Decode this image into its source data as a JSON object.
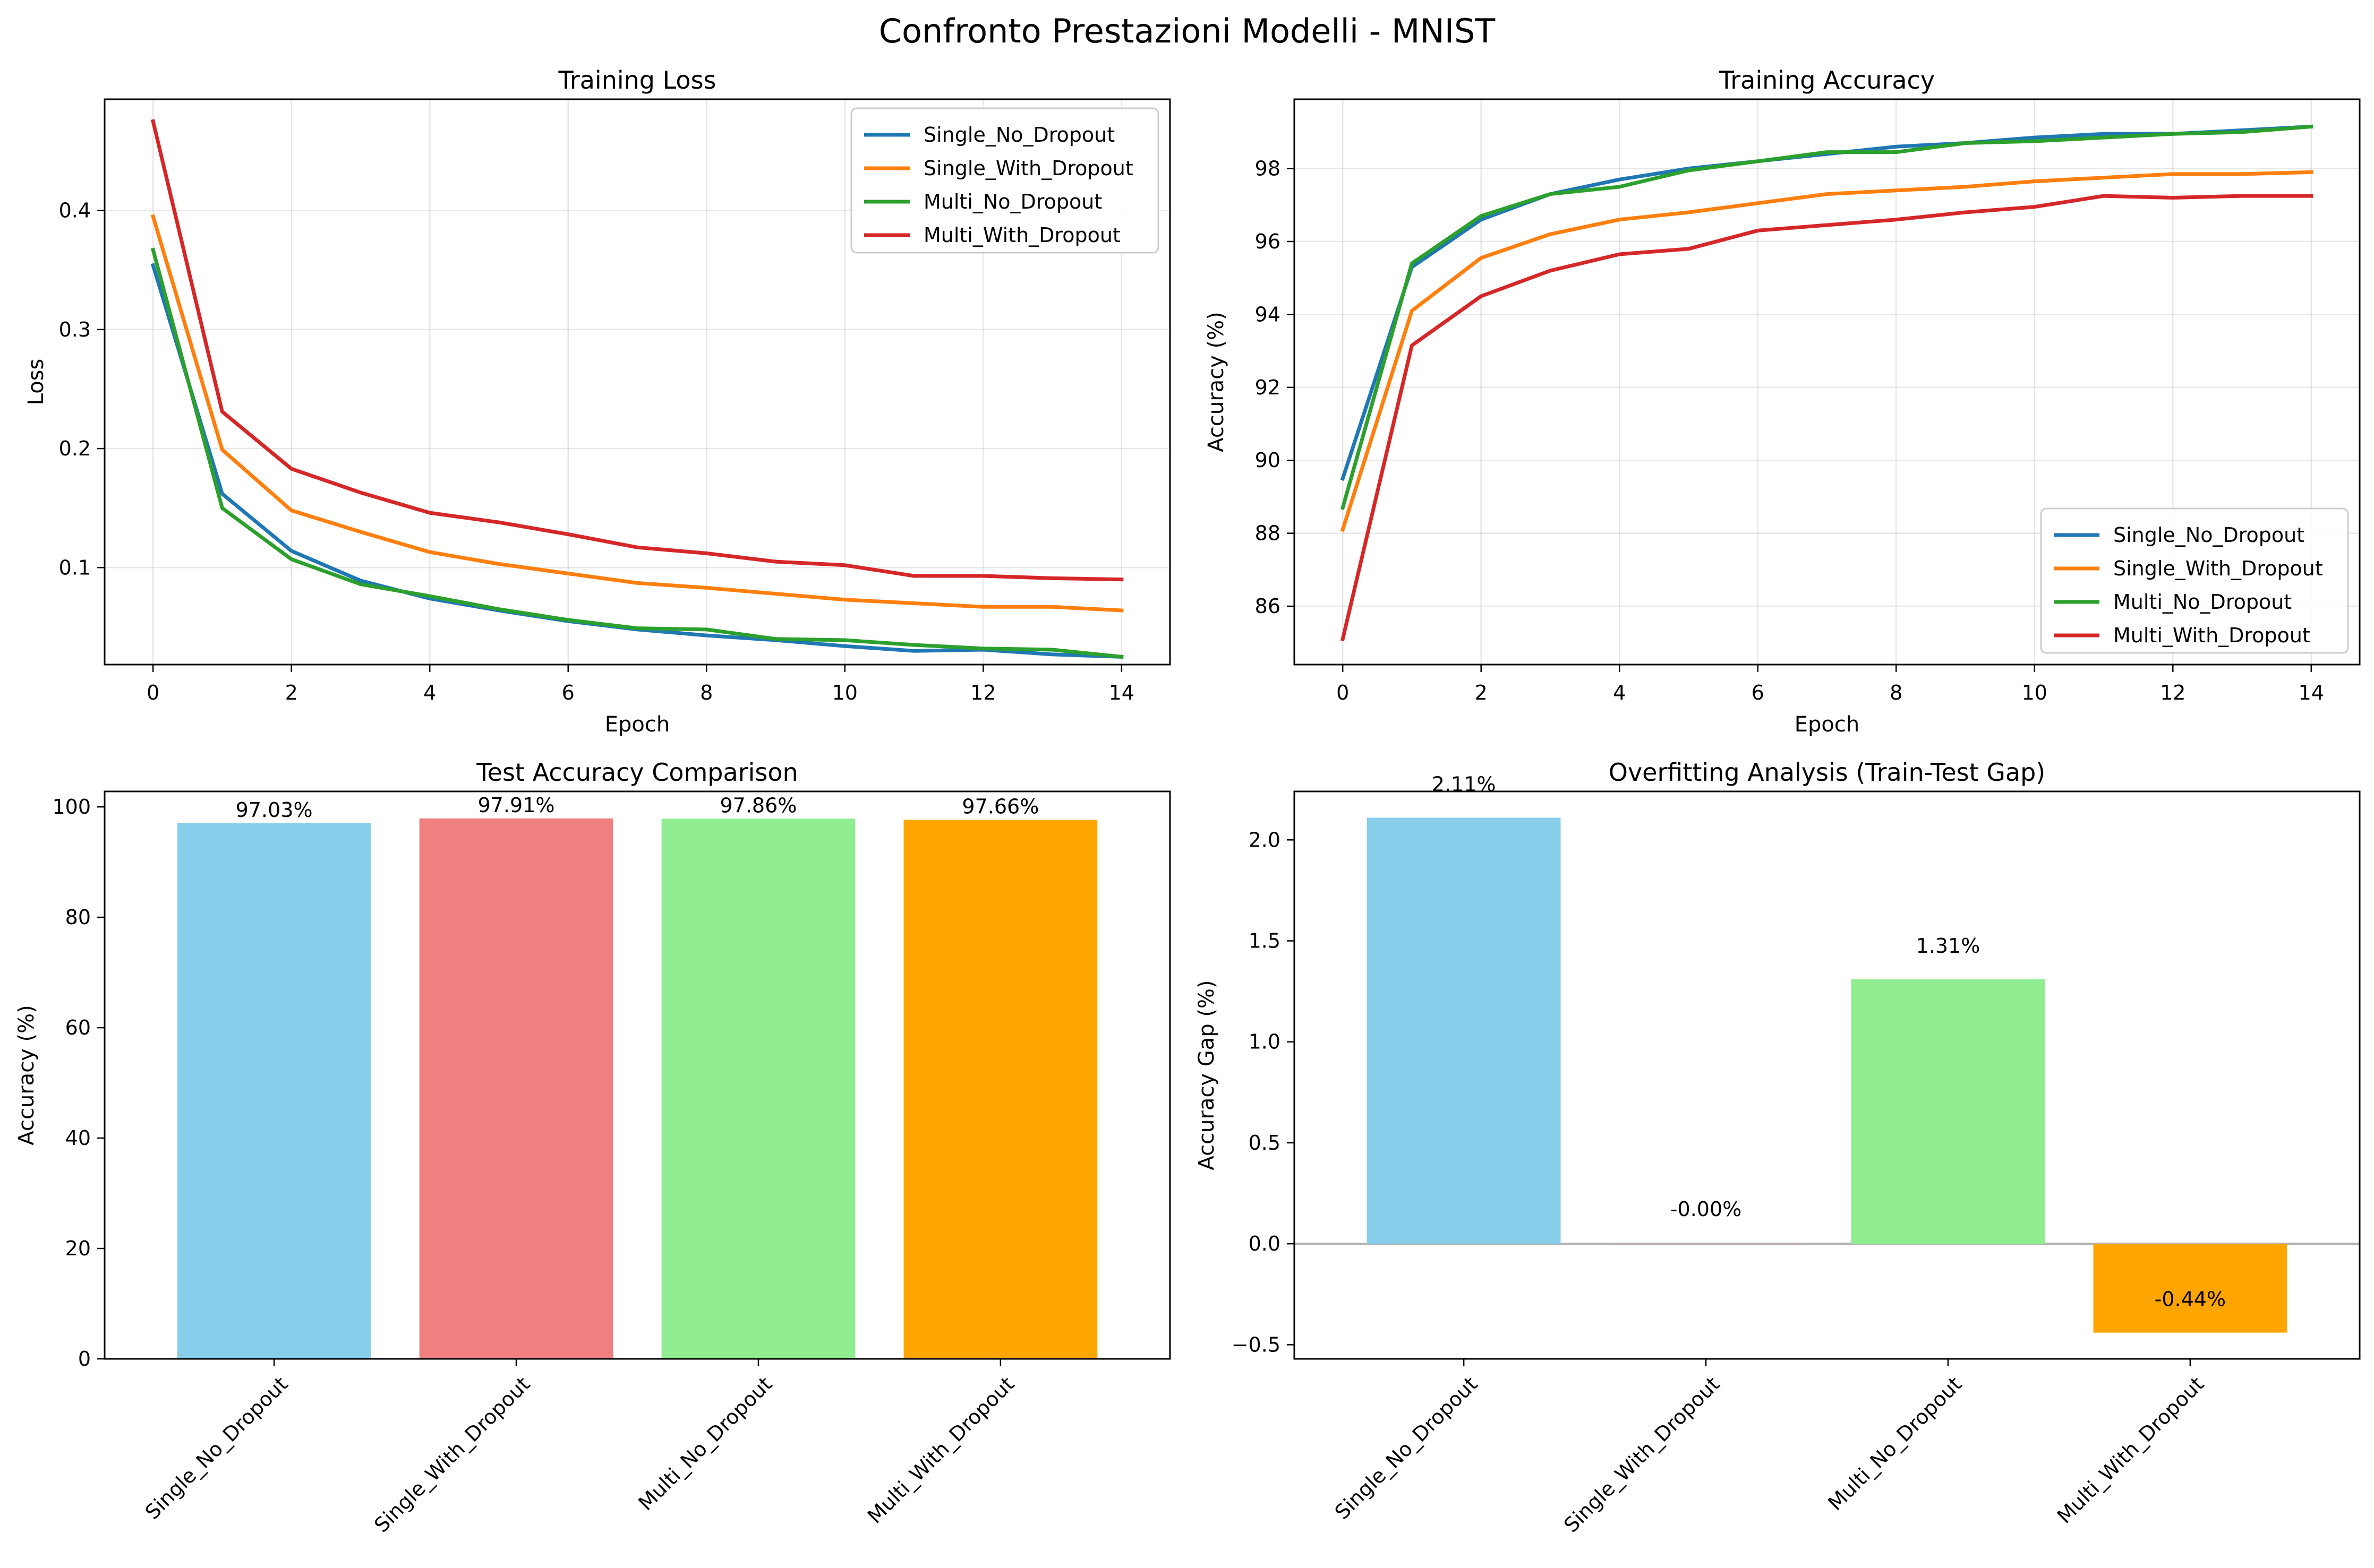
{
  "figure": {
    "suptitle": "Confronto Prestazioni Modelli - MNIST"
  },
  "colors": {
    "Single_No_Dropout": "#1f77b4",
    "Single_With_Dropout": "#ff7f0e",
    "Multi_No_Dropout": "#2ca02c",
    "Multi_With_Dropout": "#d62728",
    "bar_1": "#87ceeb",
    "bar_2": "#f08080",
    "bar_3": "#90ee90",
    "bar_4": "#ffa500"
  },
  "chart_data": [
    {
      "type": "line",
      "title": "Training Loss",
      "xlabel": "Epoch",
      "ylabel": "Loss",
      "xlim": [
        -0.7,
        14.7
      ],
      "ylim": [
        0.0185,
        0.4935
      ],
      "xticks": [
        0,
        2,
        4,
        6,
        8,
        10,
        12,
        14
      ],
      "yticks": [
        0.1,
        0.2,
        0.3,
        0.4
      ],
      "yticklabels": [
        "0.1",
        "0.2",
        "0.3",
        "0.4"
      ],
      "grid": true,
      "legend": "upper right",
      "x": [
        0,
        1,
        2,
        3,
        4,
        5,
        6,
        7,
        8,
        9,
        10,
        11,
        12,
        13,
        14
      ],
      "series": [
        {
          "name": "Single_No_Dropout",
          "values": [
            0.354,
            0.162,
            0.114,
            0.089,
            0.074,
            0.064,
            0.055,
            0.048,
            0.043,
            0.039,
            0.034,
            0.03,
            0.031,
            0.027,
            0.025
          ]
        },
        {
          "name": "Single_With_Dropout",
          "values": [
            0.395,
            0.199,
            0.148,
            0.13,
            0.113,
            0.103,
            0.095,
            0.087,
            0.083,
            0.078,
            0.073,
            0.07,
            0.067,
            0.067,
            0.064
          ]
        },
        {
          "name": "Multi_No_Dropout",
          "values": [
            0.367,
            0.15,
            0.107,
            0.086,
            0.076,
            0.065,
            0.056,
            0.049,
            0.048,
            0.04,
            0.039,
            0.035,
            0.032,
            0.031,
            0.025
          ]
        },
        {
          "name": "Multi_With_Dropout",
          "values": [
            0.475,
            0.231,
            0.183,
            0.163,
            0.146,
            0.138,
            0.128,
            0.117,
            0.112,
            0.105,
            0.102,
            0.093,
            0.093,
            0.091,
            0.09
          ]
        }
      ]
    },
    {
      "type": "line",
      "title": "Training Accuracy",
      "xlabel": "Epoch",
      "ylabel": "Accuracy (%)",
      "xlim": [
        -0.7,
        14.7
      ],
      "ylim": [
        84.4,
        99.9
      ],
      "xticks": [
        0,
        2,
        4,
        6,
        8,
        10,
        12,
        14
      ],
      "yticks": [
        86,
        88,
        90,
        92,
        94,
        96,
        98
      ],
      "yticklabels": [
        "86",
        "88",
        "90",
        "92",
        "94",
        "96",
        "98"
      ],
      "grid": true,
      "legend": "lower right",
      "x": [
        0,
        1,
        2,
        3,
        4,
        5,
        6,
        7,
        8,
        9,
        10,
        11,
        12,
        13,
        14
      ],
      "series": [
        {
          "name": "Single_No_Dropout",
          "values": [
            89.5,
            95.3,
            96.6,
            97.3,
            97.7,
            98.0,
            98.2,
            98.4,
            98.6,
            98.7,
            98.85,
            98.95,
            98.95,
            99.05,
            99.15
          ]
        },
        {
          "name": "Single_With_Dropout",
          "values": [
            88.1,
            94.1,
            95.55,
            96.2,
            96.6,
            96.8,
            97.05,
            97.3,
            97.4,
            97.5,
            97.65,
            97.75,
            97.85,
            97.85,
            97.9
          ]
        },
        {
          "name": "Multi_No_Dropout",
          "values": [
            88.7,
            95.4,
            96.7,
            97.3,
            97.5,
            97.95,
            98.2,
            98.45,
            98.45,
            98.7,
            98.75,
            98.85,
            98.95,
            99.0,
            99.15
          ]
        },
        {
          "name": "Multi_With_Dropout",
          "values": [
            85.1,
            93.15,
            94.5,
            95.2,
            95.65,
            95.8,
            96.3,
            96.45,
            96.6,
            96.8,
            96.95,
            97.25,
            97.2,
            97.25,
            97.25
          ]
        }
      ]
    },
    {
      "type": "bar",
      "title": "Test Accuracy Comparison",
      "xlabel": "",
      "ylabel": "Accuracy (%)",
      "ylim": [
        0,
        102.8
      ],
      "yticks": [
        0,
        20,
        40,
        60,
        80,
        100
      ],
      "yticklabels": [
        "0",
        "20",
        "40",
        "60",
        "80",
        "100"
      ],
      "grid": false,
      "categories": [
        "Single_No_Dropout",
        "Single_With_Dropout",
        "Multi_No_Dropout",
        "Multi_With_Dropout"
      ],
      "values": [
        97.03,
        97.91,
        97.86,
        97.66
      ],
      "labels": [
        "97.03%",
        "97.91%",
        "97.86%",
        "97.66%"
      ]
    },
    {
      "type": "bar",
      "title": "Overfitting Analysis (Train-Test Gap)",
      "xlabel": "",
      "ylabel": "Accuracy Gap (%)",
      "ylim": [
        -0.57,
        2.24
      ],
      "yticks": [
        -0.5,
        0.0,
        0.5,
        1.0,
        1.5,
        2.0
      ],
      "yticklabels": [
        "−0.5",
        "0.0",
        "0.5",
        "1.0",
        "1.5",
        "2.0"
      ],
      "grid": false,
      "categories": [
        "Single_No_Dropout",
        "Single_With_Dropout",
        "Multi_No_Dropout",
        "Multi_With_Dropout"
      ],
      "values": [
        2.11,
        -0.0,
        1.31,
        -0.44
      ],
      "labels": [
        "2.11%",
        "-0.00%",
        "1.31%",
        "-0.44%"
      ]
    }
  ]
}
